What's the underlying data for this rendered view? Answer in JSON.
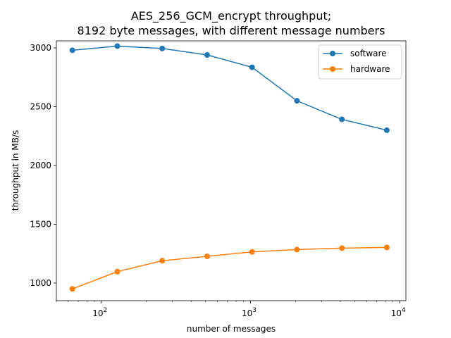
{
  "chart_data": {
    "type": "line",
    "title_lines": [
      "AES_256_GCM_encrypt throughput;",
      "8192 byte messages, with different message numbers"
    ],
    "xlabel": "number of messages",
    "ylabel": "throughput in MB/s",
    "xscale": "log",
    "xlim": [
      50,
      11000
    ],
    "ylim": [
      850,
      3060
    ],
    "x": [
      64,
      128,
      256,
      512,
      1024,
      2048,
      4096,
      8192
    ],
    "xticks": [
      {
        "value": 100,
        "base": "10",
        "exp": "2"
      },
      {
        "value": 1000,
        "base": "10",
        "exp": "3"
      },
      {
        "value": 10000,
        "base": "10",
        "exp": "4"
      }
    ],
    "yticks": [
      1000,
      1500,
      2000,
      2500,
      3000
    ],
    "grid": false,
    "legend_position": "upper-right",
    "series": [
      {
        "name": "software",
        "color": "#1f77b4",
        "values": [
          2980,
          3015,
          2995,
          2940,
          2835,
          2550,
          2392,
          2300
        ]
      },
      {
        "name": "hardware",
        "color": "#ff7f0e",
        "values": [
          950,
          1097,
          1190,
          1227,
          1265,
          1285,
          1297,
          1303
        ]
      }
    ]
  }
}
